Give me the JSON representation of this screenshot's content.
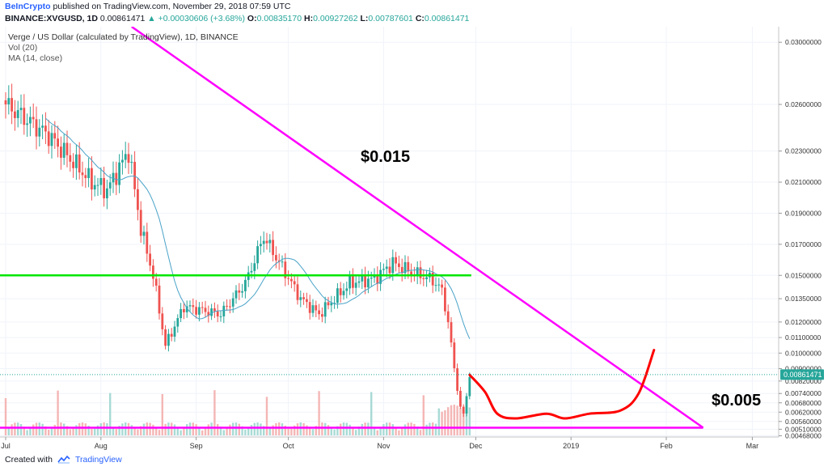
{
  "header": {
    "brand": "BeInCrypto",
    "published": " published on TradingView.com, November 29, 2018 07:59 UTC",
    "symbol": "BINANCE:XVGUSD, 1D",
    "price": "0.00861471",
    "change": "▲ +0.00030606 (+3.68%)",
    "o_label": "O:",
    "o_value": "0.00835170",
    "h_label": "H:",
    "h_value": "0.00927262",
    "l_label": "L:",
    "l_value": "0.00787601",
    "c_label": "C:",
    "c_value": "0.00861471"
  },
  "legend": {
    "title": "Verge / US Dollar (calculated by TradingView), 1D, BINANCE",
    "volume": "Vol (20)",
    "ma": "MA (14, close)"
  },
  "annotations": {
    "resistance_label": "$0.015",
    "support_label": "$0.005",
    "current_price_tag": "0.00861471"
  },
  "footer": {
    "created_with": "Created with",
    "tradingview": "TradingView"
  },
  "colors": {
    "up": "#26a69a",
    "down": "#ef5350",
    "ma": "#4aa3c8",
    "horizontal_line": "#00e600",
    "trend_line": "#ff00ff",
    "projection": "#ff0000",
    "price_tag": "#26a69a"
  },
  "chart_data": {
    "type": "candlestick",
    "ylim": [
      0.0046,
      0.031
    ],
    "y_ticks": [
      0.03,
      0.026,
      0.023,
      0.021,
      0.019,
      0.017,
      0.015,
      0.0135,
      0.012,
      0.011,
      0.01,
      0.009,
      0.0082,
      0.0074,
      0.0068,
      0.0062,
      0.0056,
      0.0051,
      0.00468
    ],
    "y_tick_labels": [
      "0.03000000",
      "0.02600000",
      "0.02300000",
      "0.02100000",
      "0.01900000",
      "0.01700000",
      "0.01500000",
      "0.01350000",
      "0.01200000",
      "0.01100000",
      "0.01000000",
      "0.00900000",
      "0.00820000",
      "0.00740000",
      "0.00680000",
      "0.00620000",
      "0.00560000",
      "0.00510000",
      "0.00468000"
    ],
    "x_tick_labels": [
      "Jul",
      "Aug",
      "Sep",
      "Oct",
      "Nov",
      "Dec",
      "2019",
      "Feb",
      "Mar"
    ],
    "x_tick_days": [
      0,
      31,
      62,
      92,
      123,
      153,
      184,
      215,
      243
    ],
    "last_candle_day": 151,
    "ma_period": 14,
    "key_prices": [
      0.026,
      0.024,
      0.021,
      0.0205,
      0.023,
      0.018,
      0.015,
      0.0105,
      0.013,
      0.0125,
      0.0145,
      0.0175,
      0.0135,
      0.0125,
      0.0145,
      0.0148,
      0.0158,
      0.0152,
      0.0148,
      0.0145,
      0.014,
      0.012,
      0.009,
      0.0065,
      0.006,
      0.0086
    ],
    "key_days": [
      0,
      14,
      28,
      33,
      40,
      44,
      48,
      52,
      58,
      70,
      78,
      84,
      96,
      102,
      112,
      120,
      126,
      132,
      138,
      140,
      142,
      144,
      146,
      148,
      149,
      151
    ],
    "horizontal_line": 0.015,
    "support_line": 0.0052,
    "trend_line": {
      "from": {
        "day": 41,
        "price": 0.031
      },
      "to": {
        "day": 227,
        "price": 0.0052
      }
    },
    "projection": [
      {
        "day": 151,
        "price": 0.0086
      },
      {
        "day": 156,
        "price": 0.0075
      },
      {
        "day": 160,
        "price": 0.0061
      },
      {
        "day": 166,
        "price": 0.0058
      },
      {
        "day": 176,
        "price": 0.0061
      },
      {
        "day": 182,
        "price": 0.0058
      },
      {
        "day": 190,
        "price": 0.0061
      },
      {
        "day": 200,
        "price": 0.0063
      },
      {
        "day": 206,
        "price": 0.0074
      },
      {
        "day": 211,
        "price": 0.0102
      }
    ]
  }
}
